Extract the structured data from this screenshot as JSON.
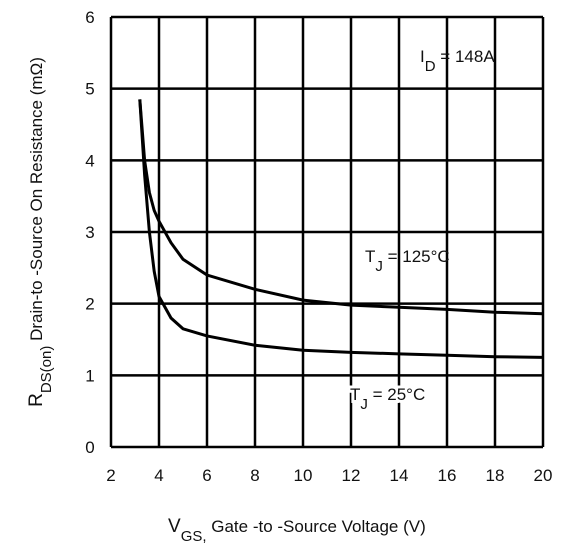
{
  "chart_data": {
    "type": "line",
    "x_label": [
      "V",
      "GS,",
      " Gate -to -Source Voltage (V)"
    ],
    "y_label": [
      "R",
      "DS(on)",
      "  Drain-to -Source On Resistance (mΩ)"
    ],
    "annotation": [
      "I",
      "D",
      " = 148A"
    ],
    "xlim": [
      2,
      20
    ],
    "xticks": [
      2,
      4,
      6,
      8,
      10,
      12,
      14,
      16,
      18,
      20
    ],
    "ylim": [
      0,
      6
    ],
    "yticks": [
      0,
      1,
      2,
      3,
      4,
      5,
      6
    ],
    "grid": true,
    "series": [
      {
        "name": [
          "T",
          "J",
          " = 125°C"
        ],
        "color": "#000000",
        "x": [
          3.2,
          3.4,
          3.6,
          3.8,
          4,
          4.5,
          5,
          6,
          8,
          10,
          12,
          14,
          16,
          18,
          20
        ],
        "values": [
          4.85,
          4.0,
          3.55,
          3.3,
          3.15,
          2.85,
          2.62,
          2.4,
          2.2,
          2.05,
          1.98,
          1.95,
          1.92,
          1.88,
          1.86
        ]
      },
      {
        "name": [
          "T",
          "J",
          " = 25°C"
        ],
        "color": "#000000",
        "x": [
          3.2,
          3.4,
          3.6,
          3.8,
          4,
          4.5,
          5,
          6,
          8,
          10,
          12,
          14,
          16,
          18,
          20
        ],
        "values": [
          4.85,
          3.8,
          3.0,
          2.45,
          2.1,
          1.8,
          1.65,
          1.55,
          1.42,
          1.35,
          1.32,
          1.3,
          1.28,
          1.26,
          1.25
        ]
      }
    ]
  }
}
